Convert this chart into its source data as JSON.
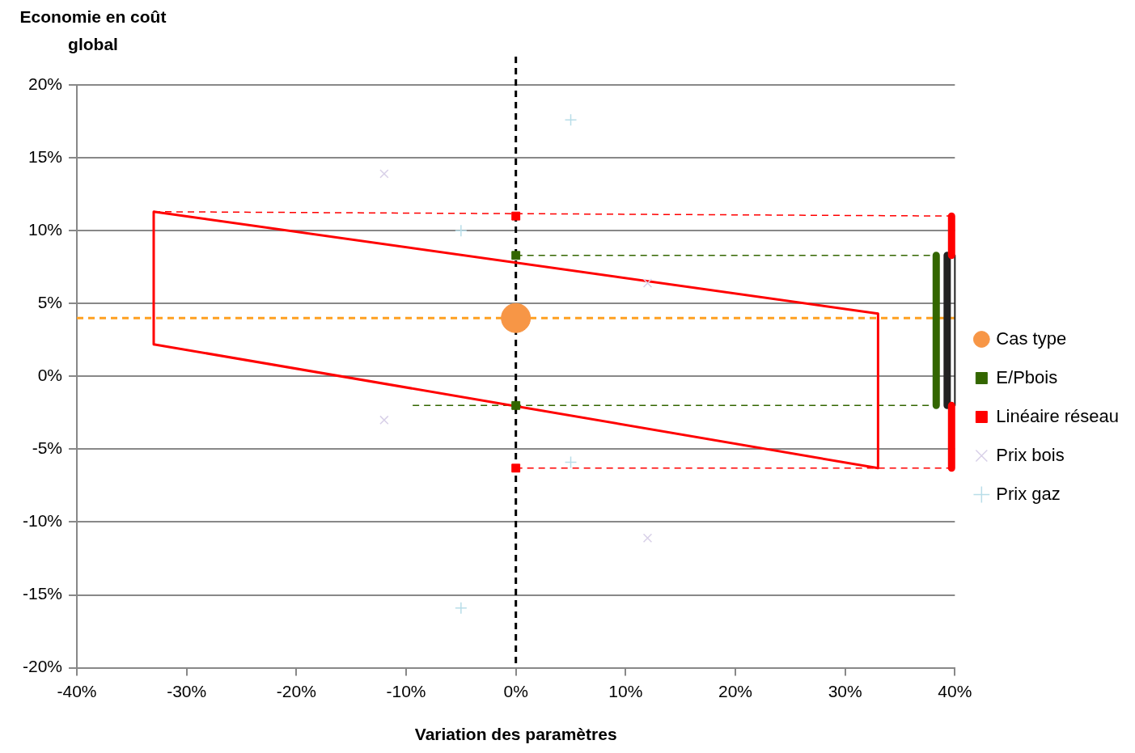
{
  "chart_data": {
    "type": "scatter",
    "ylabel": "Economie en coût global",
    "xlabel": "Variation des paramètres",
    "xlim": [
      -40,
      40
    ],
    "xticks": [
      {
        "value": -40,
        "label": "-40%"
      },
      {
        "value": -30,
        "label": "-30%"
      },
      {
        "value": -20,
        "label": "-20%"
      },
      {
        "value": -10,
        "label": "-10%"
      },
      {
        "value": 0,
        "label": "0%"
      },
      {
        "value": 10,
        "label": "10%"
      },
      {
        "value": 20,
        "label": "20%"
      },
      {
        "value": 30,
        "label": "30%"
      },
      {
        "value": 40,
        "label": "40%"
      }
    ],
    "ylim": [
      -20,
      20
    ],
    "yticks": [
      {
        "value": -20,
        "label": "-20%"
      },
      {
        "value": -15,
        "label": "-15%"
      },
      {
        "value": -10,
        "label": "-10%"
      },
      {
        "value": -5,
        "label": "-5%"
      },
      {
        "value": 0,
        "label": "0%"
      },
      {
        "value": 5,
        "label": "5%"
      },
      {
        "value": 10,
        "label": "10%"
      },
      {
        "value": 15,
        "label": "15%"
      },
      {
        "value": 20,
        "label": "20%"
      }
    ],
    "grid": "y",
    "legend": "right",
    "ref_lines": [
      {
        "axis": "y",
        "value": 4,
        "color": "#ffa020",
        "line_style": "dashed"
      },
      {
        "axis": "x",
        "value": 0,
        "color": "#000000",
        "line_style": "dashed"
      }
    ],
    "series": [
      {
        "type": "line",
        "color": "#ff0000",
        "line_style": "solid",
        "marker": "none",
        "x": [
          -33,
          33
        ],
        "values": [
          11.3,
          4.3
        ]
      },
      {
        "type": "line",
        "color": "#ff0000",
        "line_style": "solid",
        "marker": "none",
        "x": [
          -33,
          33
        ],
        "values": [
          2.2,
          -6.3
        ]
      },
      {
        "type": "line",
        "color": "#ff0000",
        "line_style": "solid",
        "marker": "none",
        "x": [
          -33,
          -33
        ],
        "values": [
          11.3,
          2.2
        ]
      },
      {
        "type": "line",
        "color": "#ff0000",
        "line_style": "solid",
        "marker": "none",
        "x": [
          33,
          33
        ],
        "values": [
          4.3,
          -6.3
        ]
      },
      {
        "type": "line",
        "color": "#ff0000",
        "line_style": "dashed",
        "marker": "none",
        "x": [
          -33,
          40
        ],
        "values": [
          11.3,
          11
        ]
      },
      {
        "type": "line",
        "color": "#ff0000",
        "line_style": "dashed",
        "marker": "none",
        "x": [
          0,
          40
        ],
        "values": [
          -6.3,
          -6.3
        ]
      },
      {
        "type": "line",
        "color": "#336600",
        "line_style": "dashed",
        "marker": "none",
        "x": [
          0,
          38.3
        ],
        "values": [
          8.3,
          8.3
        ]
      },
      {
        "type": "line",
        "color": "#336600",
        "line_style": "dashed",
        "marker": "none",
        "x": [
          -9.4,
          38.3
        ],
        "values": [
          -2,
          -2
        ]
      },
      {
        "type": "line",
        "color": "#336600",
        "line_style": "solid",
        "marker": "none",
        "x": [
          38.3,
          38.3
        ],
        "values": [
          8.3,
          -2
        ]
      },
      {
        "type": "line",
        "color": "#ff0000",
        "line_style": "solid",
        "marker": "none",
        "x": [
          39.7,
          39.7
        ],
        "values": [
          11,
          8.3
        ]
      },
      {
        "type": "line",
        "color": "#ff0000",
        "line_style": "solid",
        "marker": "none",
        "x": [
          39.7,
          39.7
        ],
        "values": [
          -2,
          -6.3
        ]
      },
      {
        "type": "line",
        "color": "#222222",
        "line_style": "solid",
        "marker": "none",
        "x": [
          39.3,
          39.3
        ],
        "values": [
          8.3,
          -2
        ]
      },
      {
        "type": "line",
        "color": "#222222",
        "line_style": "solid",
        "marker": "none",
        "x": [
          40,
          40
        ],
        "values": [
          8.3,
          -2
        ]
      },
      {
        "name": "Cas type",
        "color": "#f79646",
        "marker": "circle",
        "x": [
          0
        ],
        "values": [
          4
        ]
      },
      {
        "name": "E/Pbois",
        "color": "#336600",
        "marker": "square",
        "x": [
          0,
          0
        ],
        "values": [
          8.3,
          -2
        ]
      },
      {
        "name": "Linéaire réseau",
        "color": "#ff0000",
        "marker": "square",
        "x": [
          0,
          0
        ],
        "values": [
          11,
          -6.3
        ]
      },
      {
        "name": "Prix bois",
        "color": "#d8d0e8",
        "marker": "cross",
        "x": [
          -12,
          -12,
          12,
          12
        ],
        "values": [
          13.9,
          -3,
          6.4,
          -11.1
        ]
      },
      {
        "name": "Prix gaz",
        "color": "#b8dde8",
        "marker": "plus",
        "x": [
          5,
          -5,
          -5,
          5
        ],
        "values": [
          17.6,
          10,
          -15.9,
          -5.9
        ]
      }
    ]
  }
}
